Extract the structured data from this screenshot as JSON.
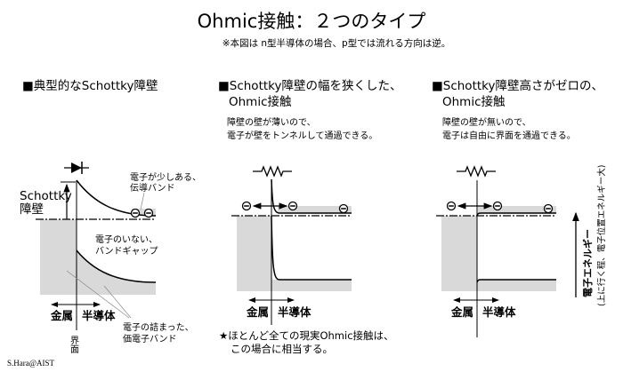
{
  "title": "Ohmic接触：２つのタイプ",
  "subtitle": "※本図は n型半導体の場合、p型では流れる方向は逆。",
  "colors": {
    "band_fill": "#d9d9d9",
    "line": "#000000"
  },
  "panels": [
    {
      "header": "■典型的なSchottky障壁",
      "symbol": "diode-icon",
      "barrier_label_1": "Schottky",
      "barrier_label_2": "障壁",
      "cb_note_1": "電子が少しある、",
      "cb_note_2": "伝導バンド",
      "gap_note_1": "電子のいない、",
      "gap_note_2": "バンドギャップ",
      "vb_note_1": "電子の詰まった、",
      "vb_note_2": "価電子バンド",
      "metal": "金属",
      "semi": "半導体",
      "interface": "界面"
    },
    {
      "header_1": "■Schottky障壁の幅を狭くした、",
      "header_2": "Ohmic接触",
      "desc_1": "障壁の壁が薄いので、",
      "desc_2": "電子が壁をトンネルして通過できる。",
      "symbol": "resistor-icon",
      "metal": "金属",
      "semi": "半導体",
      "note_1": "★ほとんど全ての現実Ohmic接触は、",
      "note_2": "この場合に相当する。"
    },
    {
      "header_1": "■Schottky障壁高さがゼロの、",
      "header_2": "Ohmic接触",
      "desc_1": "障壁の壁が無いので、",
      "desc_2": "電子は自由に界面を通過できる。",
      "symbol": "resistor-icon",
      "metal": "金属",
      "semi": "半導体"
    }
  ],
  "axis": {
    "label": "電子エネルギー",
    "note": "(上に行く程、電子位置エネルギー大)"
  },
  "credit": "S.Hara@AIST"
}
